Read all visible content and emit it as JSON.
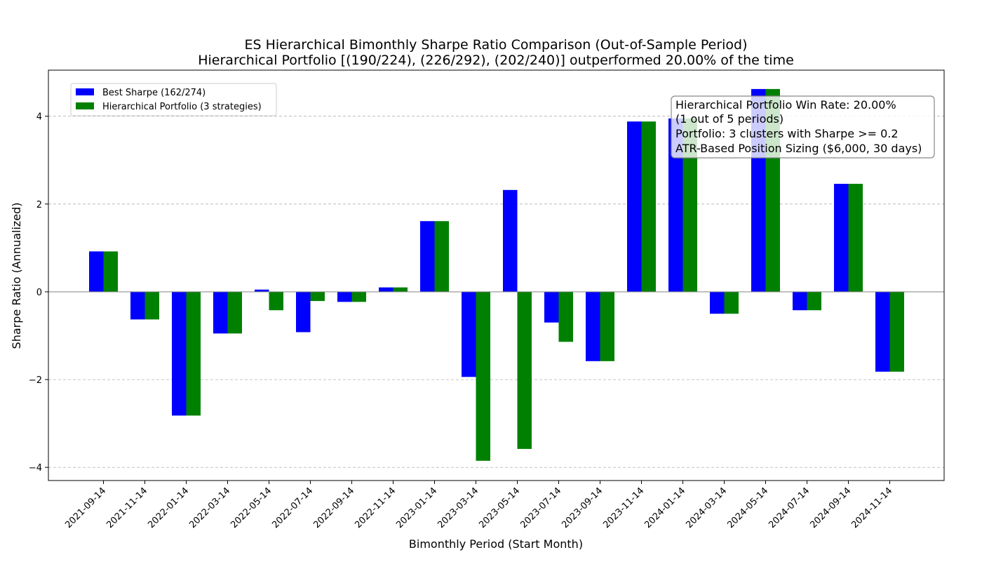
{
  "chart_data": {
    "type": "bar",
    "title": "ES Hierarchical Bimonthly Sharpe Ratio Comparison (Out-of-Sample Period)",
    "subtitle": "Hierarchical Portfolio [(190/224), (226/292), (202/240)] outperformed 20.00% of the time",
    "xlabel": "Bimonthly Period (Start Month)",
    "ylabel": "Sharpe Ratio (Annualized)",
    "ylim": [
      -4.3,
      5.05
    ],
    "yticks": [
      -4,
      -2,
      0,
      2,
      4
    ],
    "ytick_labels": [
      "−4",
      "−2",
      "0",
      "2",
      "4"
    ],
    "grid": true,
    "legend_position": "top-left",
    "categories": [
      "2021-09-14",
      "2021-11-14",
      "2022-01-14",
      "2022-03-14",
      "2022-05-14",
      "2022-07-14",
      "2022-09-14",
      "2022-11-14",
      "2023-01-14",
      "2023-03-14",
      "2023-05-14",
      "2023-07-14",
      "2023-09-14",
      "2023-11-14",
      "2024-01-14",
      "2024-03-14",
      "2024-05-14",
      "2024-07-14",
      "2024-09-14",
      "2024-11-14"
    ],
    "series": [
      {
        "name": "Best Sharpe (162/274)",
        "color": "#0000ff",
        "values": [
          0.92,
          -0.63,
          -2.82,
          -0.95,
          0.05,
          -0.92,
          -0.23,
          0.1,
          1.61,
          -1.94,
          2.32,
          -0.7,
          -1.58,
          3.88,
          3.95,
          -0.5,
          4.62,
          -0.42,
          2.46,
          -1.82
        ]
      },
      {
        "name": "Hierarchical Portfolio (3 strategies)",
        "color": "#008000",
        "values": [
          0.92,
          -0.63,
          -2.82,
          -0.95,
          -0.42,
          -0.21,
          -0.23,
          0.1,
          1.61,
          -3.85,
          -3.58,
          -1.14,
          -1.58,
          3.88,
          3.95,
          -0.5,
          4.62,
          -0.42,
          2.46,
          -1.82
        ]
      }
    ],
    "annotation": {
      "lines": [
        "Hierarchical Portfolio Win Rate: 20.00%",
        "(1 out of 5 periods)",
        "Portfolio: 3 clusters with Sharpe >= 0.2",
        "ATR-Based Position Sizing ($6,000, 30 days)"
      ],
      "position": "top-right"
    }
  }
}
